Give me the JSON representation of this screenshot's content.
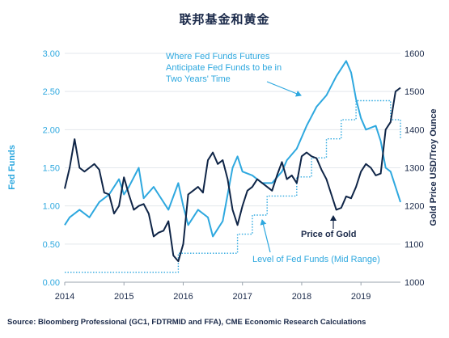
{
  "title": "联邦基金和黄金",
  "source": "Source: Bloomberg Professional (GC1, FDTRMID and FFA), CME Economic Research Calculations",
  "colors": {
    "fedfunds": "#2ea8df",
    "gold": "#0f2547",
    "text": "#1b2a4a"
  },
  "chart_data": {
    "type": "line",
    "x_ticks": [
      "2014",
      "2015",
      "2016",
      "2017",
      "2018",
      "2019"
    ],
    "xlim": [
      "2014-01",
      "2019-09"
    ],
    "y_left": {
      "label": "Fed Funds",
      "ticks": [
        "0.00",
        "0.50",
        "1.00",
        "1.50",
        "2.00",
        "2.50",
        "3.00"
      ],
      "ylim": [
        0,
        3
      ]
    },
    "y_right": {
      "label": "Gold Price USD/Troy Ounce",
      "ticks": [
        "1000",
        "1100",
        "1200",
        "1300",
        "1400",
        "1500",
        "1600"
      ],
      "ylim": [
        1000,
        1600
      ]
    },
    "annotations": {
      "futures": [
        "Where Fed Funds Futures",
        "Anticipate Fed Funds to be in",
        "Two Years' Time"
      ],
      "gold": "Price of Gold",
      "level": "Level of Fed Funds (Mid Range)"
    },
    "series": [
      {
        "name": "Level of Fed Funds (Mid Range)",
        "axis": "left",
        "style": "dotted-step",
        "x": [
          "2014-01",
          "2015-12",
          "2015-12",
          "2016-12",
          "2016-12",
          "2017-03",
          "2017-03",
          "2017-06",
          "2017-06",
          "2017-12",
          "2017-12",
          "2018-03",
          "2018-03",
          "2018-06",
          "2018-06",
          "2018-09",
          "2018-09",
          "2018-12",
          "2018-12",
          "2019-07",
          "2019-07",
          "2019-09",
          "2019-09"
        ],
        "values": [
          0.13,
          0.13,
          0.38,
          0.38,
          0.63,
          0.63,
          0.88,
          0.88,
          1.13,
          1.13,
          1.38,
          1.38,
          1.63,
          1.63,
          1.88,
          1.88,
          2.13,
          2.13,
          2.38,
          2.38,
          2.13,
          2.13,
          1.88
        ]
      },
      {
        "name": "Where Fed Funds Futures Anticipate Fed Funds to be in Two Years' Time",
        "axis": "left",
        "x": [
          "2014-01",
          "2014-02",
          "2014-04",
          "2014-06",
          "2014-08",
          "2014-10",
          "2014-12",
          "2015-01",
          "2015-02",
          "2015-04",
          "2015-05",
          "2015-07",
          "2015-08",
          "2015-10",
          "2015-12",
          "2016-01",
          "2016-02",
          "2016-04",
          "2016-06",
          "2016-07",
          "2016-09",
          "2016-11",
          "2016-12",
          "2017-01",
          "2017-03",
          "2017-05",
          "2017-07",
          "2017-09",
          "2017-10",
          "2017-12",
          "2018-02",
          "2018-04",
          "2018-06",
          "2018-08",
          "2018-10",
          "2018-11",
          "2018-12",
          "2019-01",
          "2019-02",
          "2019-04",
          "2019-05",
          "2019-06",
          "2019-07",
          "2019-08",
          "2019-09"
        ],
        "values": [
          0.75,
          0.85,
          0.95,
          0.85,
          1.05,
          1.15,
          1.35,
          1.15,
          1.25,
          1.5,
          1.1,
          1.25,
          1.15,
          0.95,
          1.3,
          1.0,
          0.75,
          0.95,
          0.85,
          0.6,
          0.8,
          1.5,
          1.65,
          1.45,
          1.4,
          1.3,
          1.3,
          1.45,
          1.6,
          1.75,
          2.05,
          2.3,
          2.45,
          2.7,
          2.9,
          2.75,
          2.4,
          2.15,
          2.0,
          2.05,
          1.85,
          1.5,
          1.45,
          1.25,
          1.05
        ]
      },
      {
        "name": "Price of Gold",
        "axis": "right",
        "x": [
          "2014-01",
          "2014-02",
          "2014-03",
          "2014-04",
          "2014-05",
          "2014-06",
          "2014-07",
          "2014-08",
          "2014-09",
          "2014-10",
          "2014-11",
          "2014-12",
          "2015-01",
          "2015-02",
          "2015-03",
          "2015-04",
          "2015-05",
          "2015-06",
          "2015-07",
          "2015-08",
          "2015-09",
          "2015-10",
          "2015-11",
          "2015-12",
          "2016-01",
          "2016-02",
          "2016-03",
          "2016-04",
          "2016-05",
          "2016-06",
          "2016-07",
          "2016-08",
          "2016-09",
          "2016-10",
          "2016-11",
          "2016-12",
          "2017-01",
          "2017-02",
          "2017-03",
          "2017-04",
          "2017-05",
          "2017-06",
          "2017-07",
          "2017-08",
          "2017-09",
          "2017-10",
          "2017-11",
          "2017-12",
          "2018-01",
          "2018-02",
          "2018-03",
          "2018-04",
          "2018-05",
          "2018-06",
          "2018-07",
          "2018-08",
          "2018-09",
          "2018-10",
          "2018-11",
          "2018-12",
          "2019-01",
          "2019-02",
          "2019-03",
          "2019-04",
          "2019-05",
          "2019-06",
          "2019-07",
          "2019-08",
          "2019-09"
        ],
        "values": [
          1245,
          1300,
          1375,
          1300,
          1290,
          1300,
          1310,
          1295,
          1235,
          1230,
          1180,
          1200,
          1275,
          1230,
          1190,
          1200,
          1205,
          1180,
          1120,
          1130,
          1135,
          1160,
          1070,
          1055,
          1100,
          1230,
          1240,
          1250,
          1235,
          1320,
          1340,
          1310,
          1320,
          1270,
          1190,
          1150,
          1200,
          1240,
          1250,
          1270,
          1260,
          1250,
          1240,
          1280,
          1315,
          1270,
          1280,
          1260,
          1330,
          1340,
          1330,
          1325,
          1295,
          1270,
          1230,
          1190,
          1195,
          1225,
          1220,
          1250,
          1290,
          1310,
          1300,
          1280,
          1285,
          1400,
          1420,
          1500,
          1510
        ]
      }
    ]
  }
}
